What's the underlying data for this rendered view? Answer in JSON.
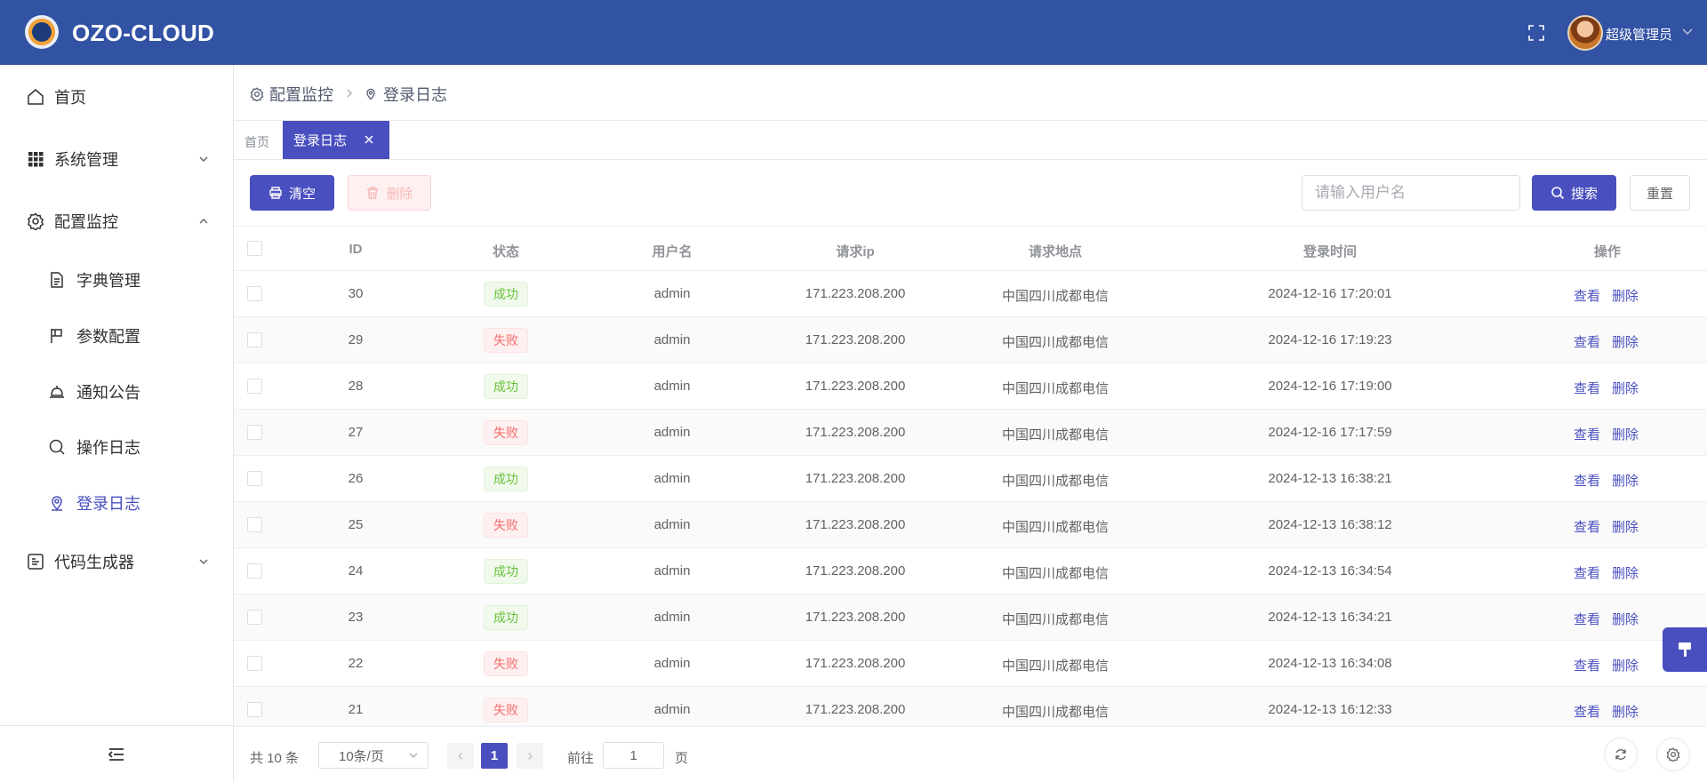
{
  "header": {
    "brand": "OZO-CLOUD",
    "user_name": "超级管理员"
  },
  "sidebar": {
    "items": [
      {
        "label": "首页"
      },
      {
        "label": "系统管理"
      },
      {
        "label": "配置监控"
      },
      {
        "label": "字典管理"
      },
      {
        "label": "参数配置"
      },
      {
        "label": "通知公告"
      },
      {
        "label": "操作日志"
      },
      {
        "label": "登录日志"
      },
      {
        "label": "代码生成器"
      }
    ]
  },
  "breadcrumb": {
    "parent": "配置监控",
    "current": "登录日志"
  },
  "tabs": {
    "home": "首页",
    "active": "登录日志"
  },
  "toolbar": {
    "clear_label": "清空",
    "delete_label": "删除",
    "search_placeholder": "请输入用户名",
    "search_label": "搜索",
    "reset_label": "重置"
  },
  "table": {
    "headers": {
      "id": "ID",
      "status": "状态",
      "username": "用户名",
      "ip": "请求ip",
      "location": "请求地点",
      "time": "登录时间",
      "actions": "操作"
    },
    "view_label": "查看",
    "delete_label": "删除",
    "rows": [
      {
        "id": "30",
        "status": "成功",
        "ok": true,
        "username": "admin",
        "ip": "171.223.208.200",
        "location": "中国四川成都电信",
        "time": "2024-12-16 17:20:01"
      },
      {
        "id": "29",
        "status": "失败",
        "ok": false,
        "username": "admin",
        "ip": "171.223.208.200",
        "location": "中国四川成都电信",
        "time": "2024-12-16 17:19:23"
      },
      {
        "id": "28",
        "status": "成功",
        "ok": true,
        "username": "admin",
        "ip": "171.223.208.200",
        "location": "中国四川成都电信",
        "time": "2024-12-16 17:19:00"
      },
      {
        "id": "27",
        "status": "失败",
        "ok": false,
        "username": "admin",
        "ip": "171.223.208.200",
        "location": "中国四川成都电信",
        "time": "2024-12-16 17:17:59"
      },
      {
        "id": "26",
        "status": "成功",
        "ok": true,
        "username": "admin",
        "ip": "171.223.208.200",
        "location": "中国四川成都电信",
        "time": "2024-12-13 16:38:21"
      },
      {
        "id": "25",
        "status": "失败",
        "ok": false,
        "username": "admin",
        "ip": "171.223.208.200",
        "location": "中国四川成都电信",
        "time": "2024-12-13 16:38:12"
      },
      {
        "id": "24",
        "status": "成功",
        "ok": true,
        "username": "admin",
        "ip": "171.223.208.200",
        "location": "中国四川成都电信",
        "time": "2024-12-13 16:34:54"
      },
      {
        "id": "23",
        "status": "成功",
        "ok": true,
        "username": "admin",
        "ip": "171.223.208.200",
        "location": "中国四川成都电信",
        "time": "2024-12-13 16:34:21"
      },
      {
        "id": "22",
        "status": "失败",
        "ok": false,
        "username": "admin",
        "ip": "171.223.208.200",
        "location": "中国四川成都电信",
        "time": "2024-12-13 16:34:08"
      },
      {
        "id": "21",
        "status": "失败",
        "ok": false,
        "username": "admin",
        "ip": "171.223.208.200",
        "location": "中国四川成都电信",
        "time": "2024-12-13 16:12:33"
      }
    ]
  },
  "pagination": {
    "total_text": "共 10 条",
    "page_size": "10条/页",
    "current_page": "1",
    "goto_prefix": "前往",
    "goto_value": "1",
    "goto_suffix": "页"
  },
  "colors": {
    "header_bg": "#3252a4",
    "accent": "#4a4fbf",
    "success": "#67c23a",
    "danger": "#f56c6c"
  }
}
